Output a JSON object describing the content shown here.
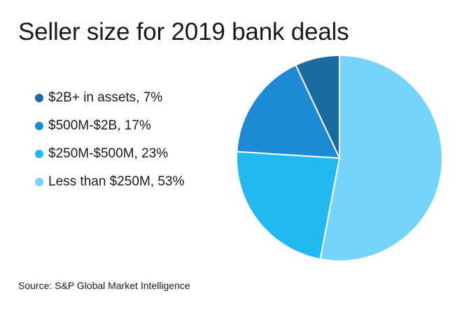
{
  "title": "Seller size for 2019 bank deals",
  "source": "Source: S&P Global Market Intelligence",
  "chart_data": {
    "type": "pie",
    "title": "Seller size for 2019 bank deals",
    "slices": [
      {
        "label": "$2B+ in assets",
        "value": 7,
        "legend_text": "$2B+ in assets, 7%",
        "color": "#1b6aa0"
      },
      {
        "label": "$500M-$2B",
        "value": 17,
        "legend_text": "$500M-$2B, 17%",
        "color": "#1d8ad6"
      },
      {
        "label": "$250M-$500M",
        "value": 23,
        "legend_text": "$250M-$500M, 23%",
        "color": "#22b8f0"
      },
      {
        "label": "Less than $250M",
        "value": 53,
        "legend_text": "Less than $250M, 53%",
        "color": "#75d4fb"
      }
    ],
    "direction": "counterclockwise",
    "start": "12 o'clock",
    "legend_placement": "left"
  }
}
